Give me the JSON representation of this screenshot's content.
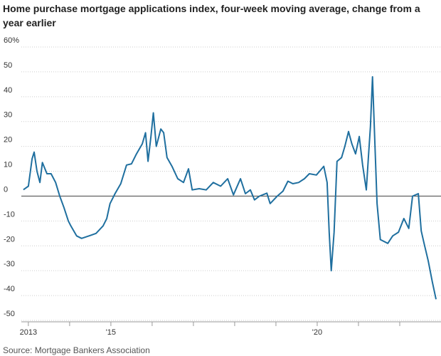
{
  "chart_data": {
    "type": "line",
    "title": "Home purchase mortgage applications index, four-week moving average, change from a year earlier",
    "source": "Source: Mortgage Bankers Association",
    "x": [
      2012.88,
      2013.0,
      2013.09,
      2013.14,
      2013.21,
      2013.28,
      2013.34,
      2013.45,
      2013.55,
      2013.66,
      2013.76,
      2013.86,
      2013.97,
      2014.03,
      2014.17,
      2014.29,
      2014.47,
      2014.64,
      2014.81,
      2014.9,
      2014.98,
      2015.1,
      2015.24,
      2015.38,
      2015.5,
      2015.62,
      2015.76,
      2015.84,
      2015.9,
      2015.97,
      2016.03,
      2016.1,
      2016.21,
      2016.28,
      2016.36,
      2016.48,
      2016.62,
      2016.76,
      2016.88,
      2016.97,
      2017.14,
      2017.31,
      2017.48,
      2017.66,
      2017.83,
      2017.97,
      2018.14,
      2018.26,
      2018.38,
      2018.48,
      2018.6,
      2018.78,
      2018.86,
      2019.03,
      2019.17,
      2019.29,
      2019.41,
      2019.55,
      2019.69,
      2019.81,
      2019.98,
      2020.16,
      2020.24,
      2020.29,
      2020.34,
      2020.41,
      2020.48,
      2020.59,
      2020.67,
      2020.76,
      2020.84,
      2020.93,
      2021.02,
      2021.1,
      2021.19,
      2021.24,
      2021.29,
      2021.34,
      2021.4,
      2021.45,
      2021.53,
      2021.71,
      2021.83,
      2021.97,
      2022.1,
      2022.22,
      2022.31,
      2022.45,
      2022.52,
      2022.59,
      2022.69,
      2022.79,
      2022.88
    ],
    "series": [
      {
        "name": "Change from a year earlier",
        "color": "#1f6f9f",
        "values": [
          2.6,
          4,
          15,
          17.7,
          10,
          5.5,
          13.5,
          9,
          9,
          5.5,
          0,
          -4.5,
          -10,
          -12,
          -16,
          -17,
          -16,
          -15,
          -12,
          -9,
          -3,
          1,
          5,
          12.5,
          13,
          17,
          21,
          25.5,
          14,
          24,
          33.5,
          20,
          27,
          25.5,
          15.5,
          12,
          7,
          5.5,
          11,
          2.5,
          3,
          2.5,
          5.5,
          4,
          7,
          0.5,
          7,
          1,
          2.5,
          -1.5,
          0,
          1.2,
          -3,
          0,
          2,
          6,
          5,
          5.5,
          7,
          9,
          8.5,
          12,
          5.5,
          -14.5,
          -30,
          -14.5,
          14,
          15.5,
          20,
          26,
          21,
          17,
          24,
          12.5,
          2.5,
          15.5,
          28,
          48,
          20,
          -3,
          -17.5,
          -19,
          -16,
          -14.5,
          -9,
          -13,
          0,
          1,
          -14,
          -19,
          -26,
          -34.5,
          -41.5
        ]
      }
    ],
    "xlim": [
      2012.83,
      2023
    ],
    "xticks": [
      {
        "value": 2013,
        "label": "2013"
      },
      {
        "value": 2015,
        "label": "'15"
      },
      {
        "value": 2020,
        "label": "'20"
      }
    ],
    "minor_xticks": [
      2014,
      2016,
      2017,
      2018,
      2019,
      2021,
      2022
    ],
    "ylim": [
      -50,
      60
    ],
    "yticks": [
      -50,
      -40,
      -30,
      -20,
      -10,
      0,
      10,
      20,
      30,
      40,
      50,
      {
        "value": 60,
        "label": "60%"
      }
    ],
    "grid": true
  }
}
